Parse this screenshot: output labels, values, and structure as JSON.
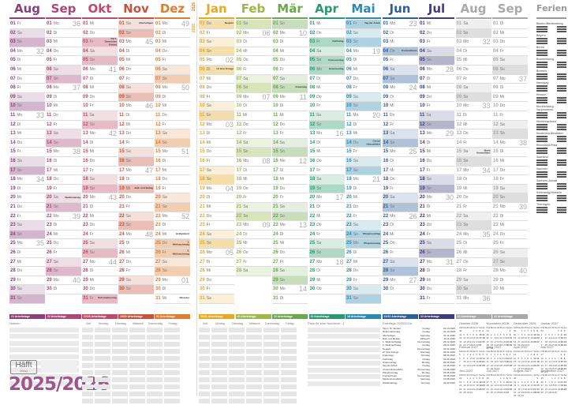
{
  "weekdays": [
    "So",
    "Mo",
    "Di",
    "Mi",
    "Do",
    "Fr",
    "Sa"
  ],
  "year_labels": {
    "first": "2025",
    "second": "2026"
  },
  "months": [
    {
      "name": "Aug",
      "year": 2025,
      "month": 8,
      "color": "#8b3f7d",
      "workdays": "21 Arbeitstage"
    },
    {
      "name": "Sep",
      "year": 2025,
      "month": 9,
      "color": "#ac4677",
      "workdays": "22 Arbeitstage"
    },
    {
      "name": "Okt",
      "year": 2025,
      "month": 10,
      "color": "#bf4968",
      "workdays": "22/23 Arbeitstage"
    },
    {
      "name": "Nov",
      "year": 2025,
      "month": 11,
      "color": "#c9523c",
      "workdays": "19/20 Arbeitstage"
    },
    {
      "name": "Dez",
      "year": 2025,
      "month": 12,
      "color": "#e07c30",
      "workdays": "21 Arbeitstage"
    },
    {
      "name": "Jan",
      "year": 2026,
      "month": 1,
      "color": "#e8a820",
      "workdays": "20/21 Arbeitstage"
    },
    {
      "name": "Feb",
      "year": 2026,
      "month": 2,
      "color": "#9cb846",
      "workdays": "20 Arbeitstage"
    },
    {
      "name": "Mär",
      "year": 2026,
      "month": 3,
      "color": "#6aa84a",
      "workdays": "22 Arbeitstage"
    },
    {
      "name": "Apr",
      "year": 2026,
      "month": 4,
      "color": "#2a9a6c",
      "workdays": "20 Arbeitstage"
    },
    {
      "name": "Mai",
      "year": 2026,
      "month": 5,
      "color": "#2a8ab2",
      "workdays": "18 Arbeitstage"
    },
    {
      "name": "Jun",
      "year": 2026,
      "month": 6,
      "color": "#2b5e9c",
      "workdays": "21/22 Arbeitstage"
    },
    {
      "name": "Jul",
      "year": 2026,
      "month": 7,
      "color": "#3c3c7e",
      "workdays": "23 Arbeitstage"
    },
    {
      "name": "Aug",
      "year": 2026,
      "month": 8,
      "color": "#a9a9a9",
      "workdays": "21 Arbeitstage"
    },
    {
      "name": "Sep",
      "year": 2026,
      "month": 9,
      "color": "#a9a9a9",
      "workdays": "22 Arbeitstage"
    }
  ],
  "holidays": {
    "2025-10-03": "Tag d. Deutschen Einheit",
    "2025-10-31": "Reformationstag",
    "2025-11-01": "Allerheiligen",
    "2025-11-19": "Buß- und Bettag",
    "2025-12-24": "Heiligabend",
    "2025-12-25": "1. Weihnachtstag",
    "2025-12-26": "2. Weihnachtstag",
    "2025-12-31": "Silvester",
    "2026-01-01": "Neujahr",
    "2026-01-06": "Hl. Drei Könige",
    "2026-03-08": "Frauentag",
    "2026-04-03": "Karfreitag",
    "2026-04-05": "Ostersonntag",
    "2026-04-06": "Ostermontag",
    "2026-05-01": "Tag der Arbeit",
    "2026-05-14": "Christi Himmelfahrt",
    "2026-05-24": "Pfingstsonntag",
    "2026-05-25": "Pfingstmontag",
    "2026-06-04": "Fronleichnam",
    "2026-08-15": "Mariä Himmelfahrt",
    "2025-09-20": "Weltkindertag"
  },
  "ferien": {
    "title": "Ferien",
    "states": [
      "Baden-Württemberg",
      "Bayern",
      "Berlin",
      "Brandenburg",
      "Bremen",
      "Hamburg",
      "Hessen",
      "Mecklenburg-Vorpommern",
      "Niedersachsen",
      "Nordrhein-Westfalen",
      "Rheinland-Pfalz",
      "Saarland",
      "Sachsen",
      "Sachsen-Anhalt",
      "Schleswig-Holstein",
      "Thüringen"
    ]
  },
  "notes": {
    "title": "Notizen"
  },
  "timetable": {
    "headers": [
      "Zeit",
      "Montag",
      "Dienstag",
      "Mittwoch",
      "Donnerstag",
      "Freitag"
    ]
  },
  "message": {
    "title": "Platz für eine Nachricht ;-)"
  },
  "feiertage": {
    "title": "Feiertage 2025/2026",
    "items": [
      [
        "Tag d. Dt. Einheit",
        "Freitag",
        "03.10.2025"
      ],
      [
        "Reformationstag",
        "Freitag",
        "31.10.2025"
      ],
      [
        "Allerheiligen",
        "Samstag",
        "01.11.2025"
      ],
      [
        "Buß- und Bettag",
        "Mittwoch",
        "19.11.2025"
      ],
      [
        "1. Weihnachtstag",
        "Donnerstag",
        "25.12.2025"
      ],
      [
        "2. Weihnachtstag",
        "Freitag",
        "26.12.2025"
      ],
      [
        "Neujahr",
        "Donnerstag",
        "01.01.2026"
      ],
      [
        "Hl. Drei Könige",
        "Dienstag",
        "06.01.2026"
      ],
      [
        "Frauentag",
        "Sonntag",
        "08.03.2026"
      ],
      [
        "Karfreitag",
        "Freitag",
        "03.04.2026"
      ],
      [
        "Ostermontag",
        "Montag",
        "06.04.2026"
      ],
      [
        "Tag der Arbeit",
        "Freitag",
        "01.05.2026"
      ],
      [
        "Christi Himmelfahrt",
        "Donnerstag",
        "14.05.2026"
      ],
      [
        "Pfingstmontag",
        "Montag",
        "25.05.2026"
      ],
      [
        "Fronleichnam",
        "Donnerstag",
        "04.06.2026"
      ],
      [
        "Mariä Himmelfahrt",
        "Samstag",
        "15.08.2026"
      ],
      [
        "Weltkindertag",
        "Sonntag",
        "20.09.2026"
      ]
    ]
  },
  "minicals": [
    {
      "title": "Oktober 2026",
      "y": 2026,
      "m": 10
    },
    {
      "title": "November 2026",
      "y": 2026,
      "m": 11
    },
    {
      "title": "Dezember 2026",
      "y": 2026,
      "m": 12
    },
    {
      "title": "Januar 2027",
      "y": 2027,
      "m": 1
    },
    {
      "title": "Februar 2027",
      "y": 2027,
      "m": 2
    },
    {
      "title": "März 2027",
      "y": 2027,
      "m": 3
    },
    {
      "title": "April 2027",
      "y": 2027,
      "m": 4
    },
    {
      "title": "Mai 2027",
      "y": 2027,
      "m": 5
    },
    {
      "title": "Juni 2027",
      "y": 2027,
      "m": 6
    },
    {
      "title": "Juli 2027",
      "y": 2027,
      "m": 7
    },
    {
      "title": "August 2027",
      "y": 2027,
      "m": 8
    },
    {
      "title": "September 2027",
      "y": 2027,
      "m": 9
    }
  ],
  "mini_weekdays": [
    "KW",
    "Mo",
    "Di",
    "Mi",
    "Do",
    "Fr",
    "Sa",
    "So"
  ],
  "brand": {
    "logo": "Häfft",
    "sub": "Verlag",
    "year_title": "2025/2026"
  }
}
